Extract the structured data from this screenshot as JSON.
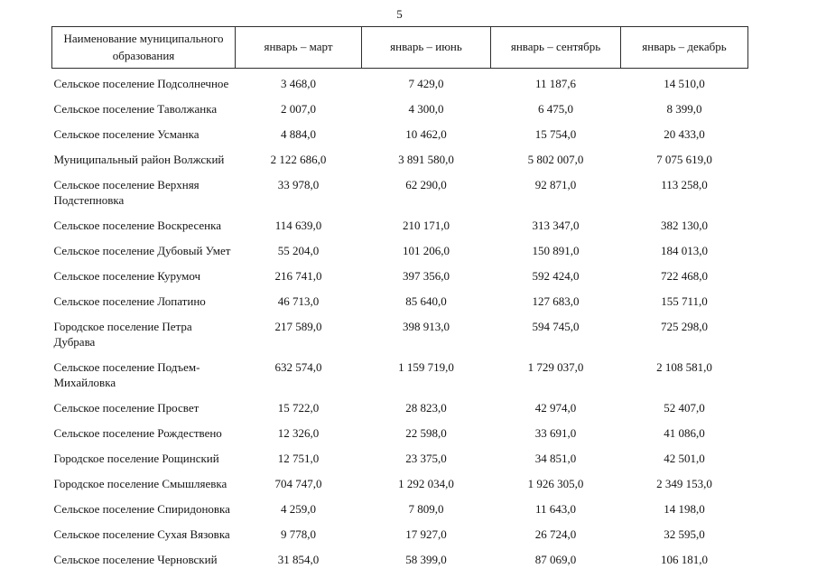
{
  "page": {
    "number": "5"
  },
  "table": {
    "columns": [
      {
        "label": "Наименование муниципального образования"
      },
      {
        "label": "январь – март"
      },
      {
        "label": "январь – июнь"
      },
      {
        "label": "январь – сентябрь"
      },
      {
        "label": "январь – декабрь"
      }
    ],
    "rows": [
      {
        "name": "Сельское поселение Подсолнечное",
        "values": [
          "3 468,0",
          "7 429,0",
          "11 187,6",
          "14 510,0"
        ]
      },
      {
        "name": "Сельское поселение Таволжанка",
        "values": [
          "2 007,0",
          "4 300,0",
          "6 475,0",
          "8 399,0"
        ]
      },
      {
        "name": "Сельское поселение Усманка",
        "values": [
          "4 884,0",
          "10 462,0",
          "15 754,0",
          "20 433,0"
        ]
      },
      {
        "name": "Муниципальный район Волжский",
        "values": [
          "2 122 686,0",
          "3 891 580,0",
          "5 802 007,0",
          "7 075 619,0"
        ]
      },
      {
        "name": "Сельское поселение Верхняя Подстепновка",
        "values": [
          "33 978,0",
          "62 290,0",
          "92 871,0",
          "113 258,0"
        ]
      },
      {
        "name": "Сельское поселение Воскресенка",
        "values": [
          "114 639,0",
          "210 171,0",
          "313 347,0",
          "382 130,0"
        ]
      },
      {
        "name": "Сельское поселение Дубовый Умет",
        "values": [
          "55 204,0",
          "101 206,0",
          "150 891,0",
          "184 013,0"
        ]
      },
      {
        "name": "Сельское поселение Курумоч",
        "values": [
          "216 741,0",
          "397 356,0",
          "592 424,0",
          "722 468,0"
        ]
      },
      {
        "name": "Сельское поселение Лопатино",
        "values": [
          "46 713,0",
          "85 640,0",
          "127 683,0",
          "155 711,0"
        ]
      },
      {
        "name": "Городское поселение Петра Дубрава",
        "values": [
          "217 589,0",
          "398 913,0",
          "594 745,0",
          "725 298,0"
        ]
      },
      {
        "name": "Сельское поселение Подъем-Михайловка",
        "values": [
          "632 574,0",
          "1 159 719,0",
          "1 729 037,0",
          "2 108 581,0"
        ]
      },
      {
        "name": "Сельское поселение Просвет",
        "values": [
          "15 722,0",
          "28 823,0",
          "42 974,0",
          "52 407,0"
        ]
      },
      {
        "name": "Сельское поселение Рождествено",
        "values": [
          "12 326,0",
          "22 598,0",
          "33 691,0",
          "41 086,0"
        ]
      },
      {
        "name": "Городское поселение Рощинский",
        "values": [
          "12 751,0",
          "23 375,0",
          "34 851,0",
          "42 501,0"
        ]
      },
      {
        "name": "Городское поселение Смышляевка",
        "values": [
          "704 747,0",
          "1 292 034,0",
          "1 926 305,0",
          "2 349 153,0"
        ]
      },
      {
        "name": "Сельское поселение Спиридоновка",
        "values": [
          "4 259,0",
          "7 809,0",
          "11 643,0",
          "14 198,0"
        ]
      },
      {
        "name": "Сельское поселение Сухая Вязовка",
        "values": [
          "9 778,0",
          "17 927,0",
          "26 724,0",
          "32 595,0"
        ]
      },
      {
        "name": "Сельское поселение Черновский",
        "values": [
          "31 854,0",
          "58 399,0",
          "87 069,0",
          "106 181,0"
        ]
      }
    ]
  }
}
